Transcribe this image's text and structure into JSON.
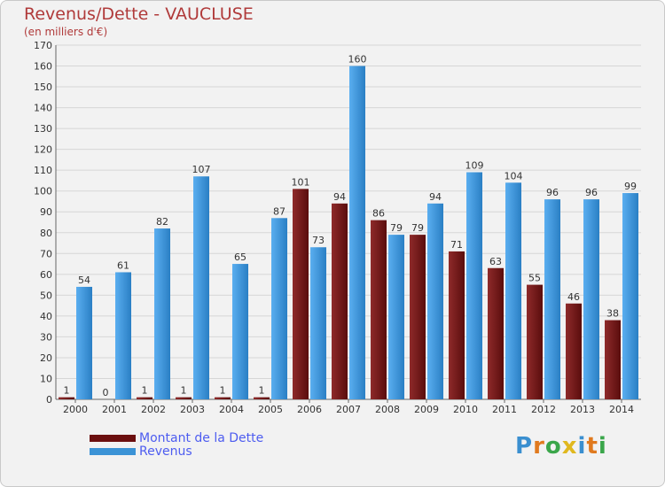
{
  "chart_data": {
    "type": "bar",
    "title": "Revenus/Dette - VAUCLUSE",
    "subtitle": "(en milliers d'€)",
    "categories": [
      "2000",
      "2001",
      "2002",
      "2003",
      "2004",
      "2005",
      "2006",
      "2007",
      "2008",
      "2009",
      "2010",
      "2011",
      "2012",
      "2013",
      "2014"
    ],
    "series": [
      {
        "name": "Montant de la Dette",
        "color": "#7a1c1c",
        "values": [
          1,
          0,
          1,
          1,
          1,
          1,
          101,
          94,
          86,
          79,
          71,
          63,
          55,
          46,
          38
        ]
      },
      {
        "name": "Revenus",
        "color": "#3b93d6",
        "values": [
          54,
          61,
          82,
          107,
          65,
          87,
          73,
          160,
          79,
          94,
          109,
          104,
          96,
          96,
          99
        ]
      }
    ],
    "ylim": [
      0,
      170
    ],
    "yticks": [
      0,
      10,
      20,
      30,
      40,
      50,
      60,
      70,
      80,
      90,
      100,
      110,
      120,
      130,
      140,
      150,
      160,
      170
    ],
    "grid": true,
    "xlabel": "",
    "ylabel": ""
  },
  "legend": {
    "items": [
      {
        "label": "Montant de la Dette",
        "color": "#6b0f0f"
      },
      {
        "label": "Revenus",
        "color": "#3b93d6"
      }
    ]
  },
  "logo": {
    "letters": [
      "P",
      "r",
      "o",
      "x",
      "i",
      "t",
      "i"
    ],
    "colors": [
      "#3a8fd0",
      "#e07a1f",
      "#3aa64a",
      "#e0b81f",
      "#3a8fd0",
      "#e07a1f",
      "#3aa64a"
    ]
  }
}
